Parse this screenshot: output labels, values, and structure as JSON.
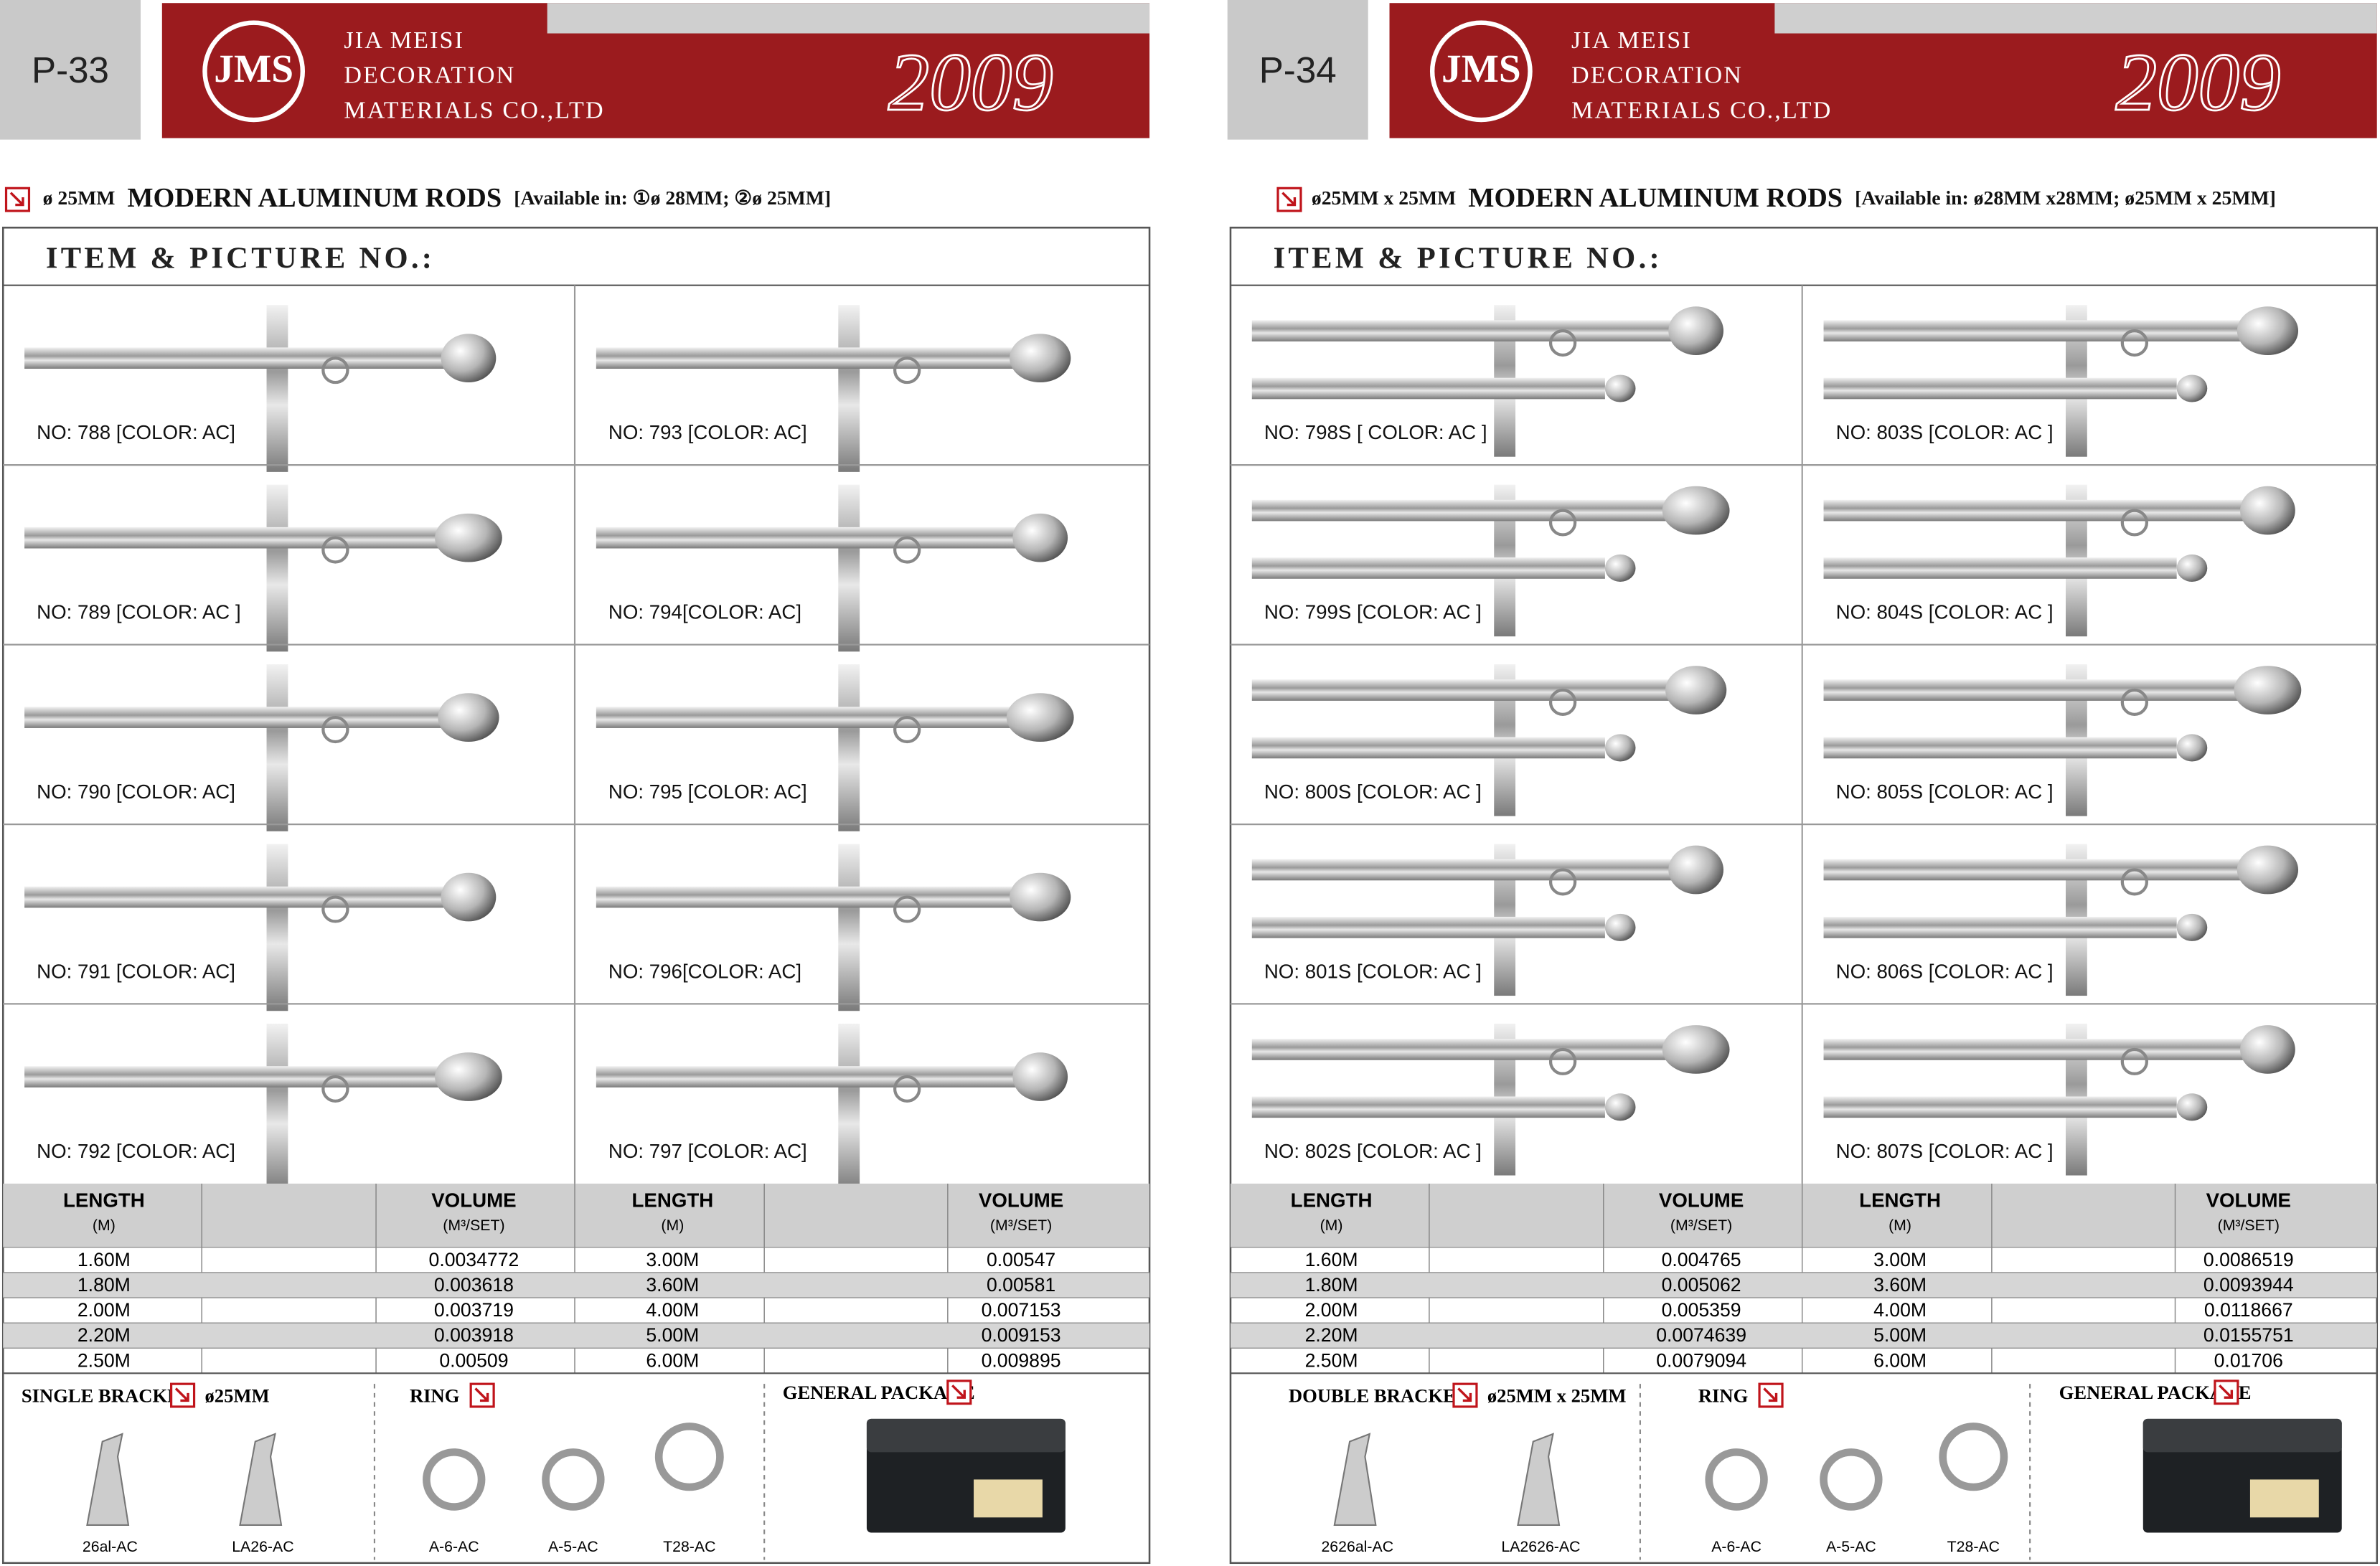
{
  "pages": [
    {
      "page_no": "P-33",
      "logo": "JMS",
      "company": [
        "JIA MEISI",
        "DECORATION",
        "MATERIALS CO.,LTD"
      ],
      "year": "2009",
      "heading": {
        "size": "ø 25MM",
        "title": "MODERN ALUMINUM  RODS",
        "available": "[Available in: ①ø 28MM; ②ø 25MM]"
      },
      "section": "ITEM & PICTURE NO.:",
      "items": [
        "NO: 788 [COLOR: AC]",
        "NO: 793 [COLOR: AC]",
        "NO: 789 [COLOR: AC ]",
        "NO: 794[COLOR: AC]",
        "NO: 790 [COLOR: AC]",
        "NO: 795 [COLOR: AC]",
        "NO: 791 [COLOR: AC]",
        "NO: 796[COLOR: AC]",
        "NO: 792 [COLOR: AC]",
        "NO: 797 [COLOR: AC]"
      ],
      "table": {
        "headers": [
          "LENGTH",
          "(M)",
          "VOLUME",
          "(M³/SET)"
        ],
        "rows": [
          [
            "1.60M",
            "0.0034772",
            "3.00M",
            "0.00547"
          ],
          [
            "1.80M",
            "0.003618",
            "3.60M",
            "0.00581"
          ],
          [
            "2.00M",
            "0.003719",
            "4.00M",
            "0.007153"
          ],
          [
            "2.20M",
            "0.003918",
            "5.00M",
            "0.009153"
          ],
          [
            "2.50M",
            "0.00509",
            "6.00M",
            "0.009895"
          ]
        ]
      },
      "accessories": {
        "bracket": "SINGLE BRACKET",
        "bracket_size": "ø25MM",
        "ring": "RING",
        "package": "GENERAL PACKAGE",
        "parts": [
          "26al-AC",
          "LA26-AC",
          "A-6-AC",
          "A-5-AC",
          "T28-AC"
        ]
      }
    },
    {
      "page_no": "P-34",
      "logo": "JMS",
      "company": [
        "JIA MEISI",
        "DECORATION",
        "MATERIALS CO.,LTD"
      ],
      "year": "2009",
      "heading": {
        "size": "ø25MM x 25MM",
        "title": "MODERN ALUMINUM  RODS",
        "available": "[Available in: ø28MM x28MM;   ø25MM x 25MM]"
      },
      "section": "ITEM & PICTURE NO.:",
      "items": [
        "NO: 798S [ COLOR:  AC ]",
        "NO: 803S [COLOR:  AC ]",
        "NO: 799S [COLOR:  AC ]",
        "NO: 804S [COLOR:  AC ]",
        "NO: 800S [COLOR:  AC ]",
        "NO: 805S [COLOR:  AC ]",
        "NO: 801S [COLOR:  AC ]",
        "NO: 806S [COLOR:  AC ]",
        "NO: 802S [COLOR:  AC ]",
        "NO: 807S [COLOR:  AC ]"
      ],
      "table": {
        "headers": [
          "LENGTH",
          "(M)",
          "VOLUME",
          "(M³/SET)"
        ],
        "rows": [
          [
            "1.60M",
            "0.004765",
            "3.00M",
            "0.0086519"
          ],
          [
            "1.80M",
            "0.005062",
            "3.60M",
            "0.0093944"
          ],
          [
            "2.00M",
            "0.005359",
            "4.00M",
            "0.0118667"
          ],
          [
            "2.20M",
            "0.0074639",
            "5.00M",
            "0.0155751"
          ],
          [
            "2.50M",
            "0.0079094",
            "6.00M",
            "0.01706"
          ]
        ]
      },
      "accessories": {
        "bracket": "DOUBLE BRACKET",
        "bracket_size": "ø25MM x 25MM",
        "ring": "RING",
        "package": "GENERAL PACKAGE",
        "parts": [
          "2626al-AC",
          "LA2626-AC",
          "A-6-AC",
          "A-5-AC",
          "T28-AC"
        ]
      }
    }
  ]
}
